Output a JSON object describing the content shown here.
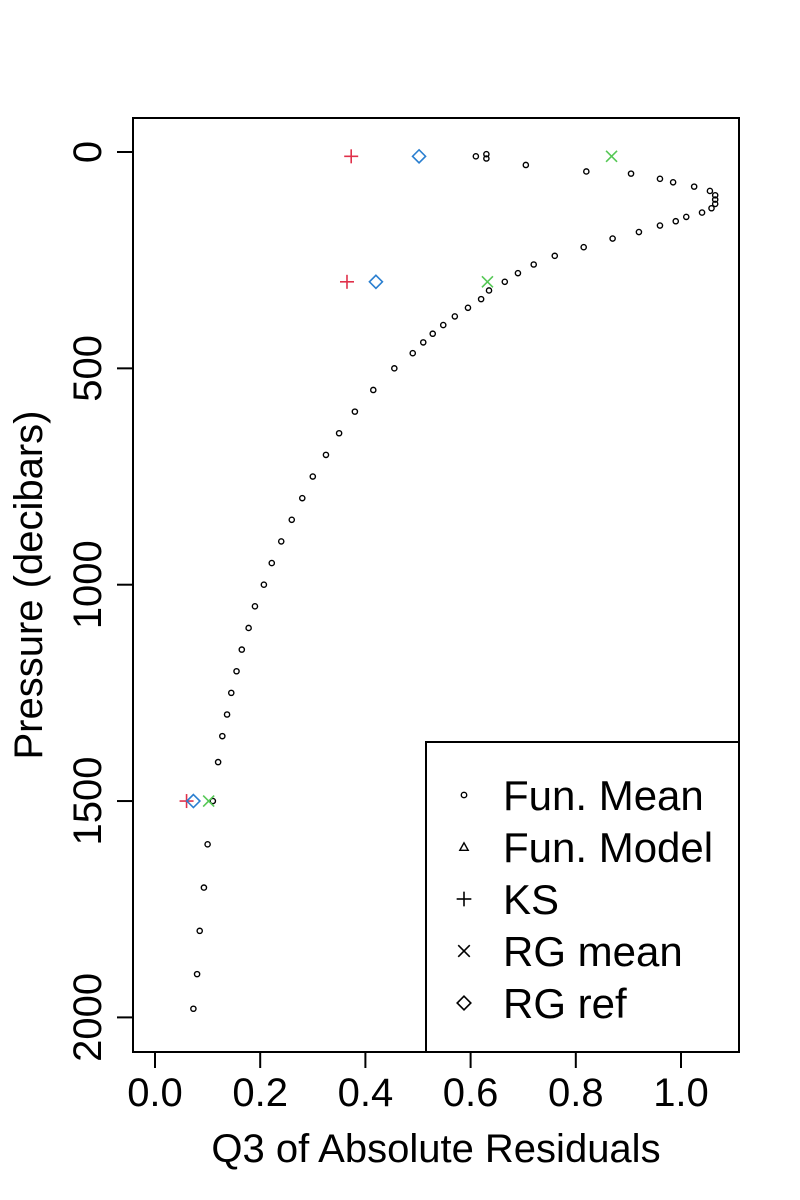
{
  "chart_data": {
    "type": "scatter",
    "xlabel": "Q3 of Absolute Residuals",
    "ylabel": "Pressure (decibars)",
    "xlim": [
      -0.05,
      1.1
    ],
    "ylim": [
      2080,
      -80
    ],
    "y_reversed": true,
    "grid": false,
    "legend_position": "bottom-right",
    "x_ticks": [
      0.0,
      0.2,
      0.4,
      0.6,
      0.8,
      1.0
    ],
    "x_tick_labels": [
      "0.0",
      "0.2",
      "0.4",
      "0.6",
      "0.8",
      "1.0"
    ],
    "y_ticks": [
      0,
      500,
      1000,
      1500,
      2000
    ],
    "y_tick_labels": [
      "0",
      "500",
      "1000",
      "1500",
      "2000"
    ],
    "series": [
      {
        "name": "Fun. Mean",
        "symbol": "circle",
        "color": "#000000",
        "points": [
          [
            0.63,
            5
          ],
          [
            0.61,
            10
          ],
          [
            0.63,
            15
          ],
          [
            0.705,
            30
          ],
          [
            0.82,
            45
          ],
          [
            0.905,
            50
          ],
          [
            0.96,
            62
          ],
          [
            0.985,
            70
          ],
          [
            1.025,
            80
          ],
          [
            1.055,
            90
          ],
          [
            1.065,
            100
          ],
          [
            1.065,
            110
          ],
          [
            1.065,
            120
          ],
          [
            1.058,
            130
          ],
          [
            1.04,
            140
          ],
          [
            1.01,
            150
          ],
          [
            0.99,
            160
          ],
          [
            0.96,
            170
          ],
          [
            0.92,
            185
          ],
          [
            0.87,
            200
          ],
          [
            0.815,
            220
          ],
          [
            0.76,
            240
          ],
          [
            0.72,
            260
          ],
          [
            0.69,
            280
          ],
          [
            0.665,
            300
          ],
          [
            0.635,
            320
          ],
          [
            0.62,
            340
          ],
          [
            0.595,
            360
          ],
          [
            0.57,
            380
          ],
          [
            0.548,
            400
          ],
          [
            0.528,
            420
          ],
          [
            0.51,
            440
          ],
          [
            0.49,
            465
          ],
          [
            0.455,
            500
          ],
          [
            0.415,
            550
          ],
          [
            0.38,
            600
          ],
          [
            0.35,
            650
          ],
          [
            0.325,
            700
          ],
          [
            0.3,
            750
          ],
          [
            0.28,
            800
          ],
          [
            0.26,
            850
          ],
          [
            0.24,
            900
          ],
          [
            0.222,
            950
          ],
          [
            0.207,
            1000
          ],
          [
            0.19,
            1050
          ],
          [
            0.178,
            1100
          ],
          [
            0.165,
            1150
          ],
          [
            0.155,
            1200
          ],
          [
            0.145,
            1250
          ],
          [
            0.137,
            1300
          ],
          [
            0.128,
            1350
          ],
          [
            0.12,
            1410
          ],
          [
            0.11,
            1500
          ],
          [
            0.1,
            1600
          ],
          [
            0.093,
            1700
          ],
          [
            0.085,
            1800
          ],
          [
            0.08,
            1900
          ],
          [
            0.073,
            1980
          ]
        ]
      },
      {
        "name": "Fun. Model",
        "symbol": "triangle",
        "color": "#000000",
        "points": []
      },
      {
        "name": "KS",
        "symbol": "plus",
        "color": "#E0304A",
        "points": [
          [
            0.373,
            10
          ],
          [
            0.365,
            300
          ],
          [
            0.06,
            1500
          ]
        ]
      },
      {
        "name": "RG mean",
        "symbol": "cross",
        "color": "#55C855",
        "points": [
          [
            0.868,
            10
          ],
          [
            0.632,
            300
          ],
          [
            0.102,
            1500
          ]
        ]
      },
      {
        "name": "RG ref",
        "symbol": "diamond",
        "color": "#2A7FD0",
        "points": [
          [
            0.502,
            10
          ],
          [
            0.42,
            300
          ],
          [
            0.073,
            1500
          ]
        ]
      }
    ],
    "legend": [
      {
        "symbol": "circle",
        "label": "Fun. Mean"
      },
      {
        "symbol": "triangle",
        "label": "Fun. Model"
      },
      {
        "symbol": "plus",
        "label": "KS"
      },
      {
        "symbol": "cross",
        "label": "RG mean"
      },
      {
        "symbol": "diamond",
        "label": "RG ref"
      }
    ]
  }
}
